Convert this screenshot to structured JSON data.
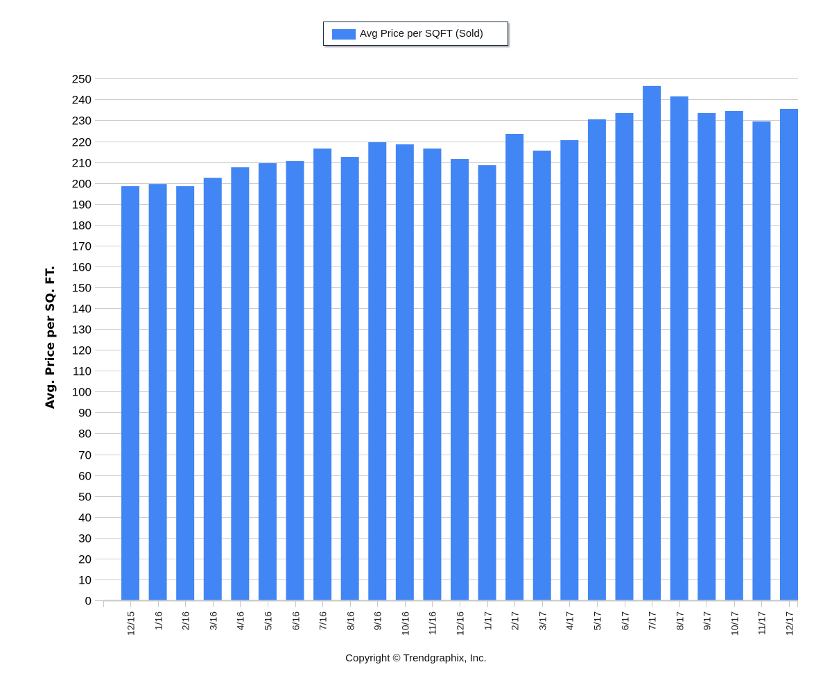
{
  "legend": {
    "label": "Avg Price per SQFT (Sold)",
    "color": "#4285f4"
  },
  "footer": {
    "copyright": "Copyright © Trendgraphix, Inc."
  },
  "chart_data": {
    "type": "bar",
    "title": "",
    "xlabel": "",
    "ylabel": "Avg. Price per SQ. FT.",
    "ylim": [
      0,
      250
    ],
    "yticks": [
      0,
      10,
      20,
      30,
      40,
      50,
      60,
      70,
      80,
      90,
      100,
      110,
      120,
      130,
      140,
      150,
      160,
      170,
      180,
      190,
      200,
      210,
      220,
      230,
      240,
      250
    ],
    "grid": true,
    "legend_position": "top",
    "categories": [
      "12/15",
      "1/16",
      "2/16",
      "3/16",
      "4/16",
      "5/16",
      "6/16",
      "7/16",
      "8/16",
      "9/16",
      "10/16",
      "11/16",
      "12/16",
      "1/17",
      "2/17",
      "3/17",
      "4/17",
      "5/17",
      "6/17",
      "7/17",
      "8/17",
      "9/17",
      "10/17",
      "11/17",
      "12/17"
    ],
    "series": [
      {
        "name": "Avg Price per SQFT (Sold)",
        "color": "#4285f4",
        "values": [
          198.5,
          199.5,
          198.5,
          202.5,
          207.5,
          209.5,
          210.5,
          216.5,
          212.5,
          219.5,
          218.5,
          216.5,
          211.5,
          208.5,
          223.5,
          215.5,
          220.5,
          230.5,
          233.5,
          246.5,
          241.5,
          233.5,
          234.5,
          229.5,
          235.5
        ]
      }
    ]
  }
}
